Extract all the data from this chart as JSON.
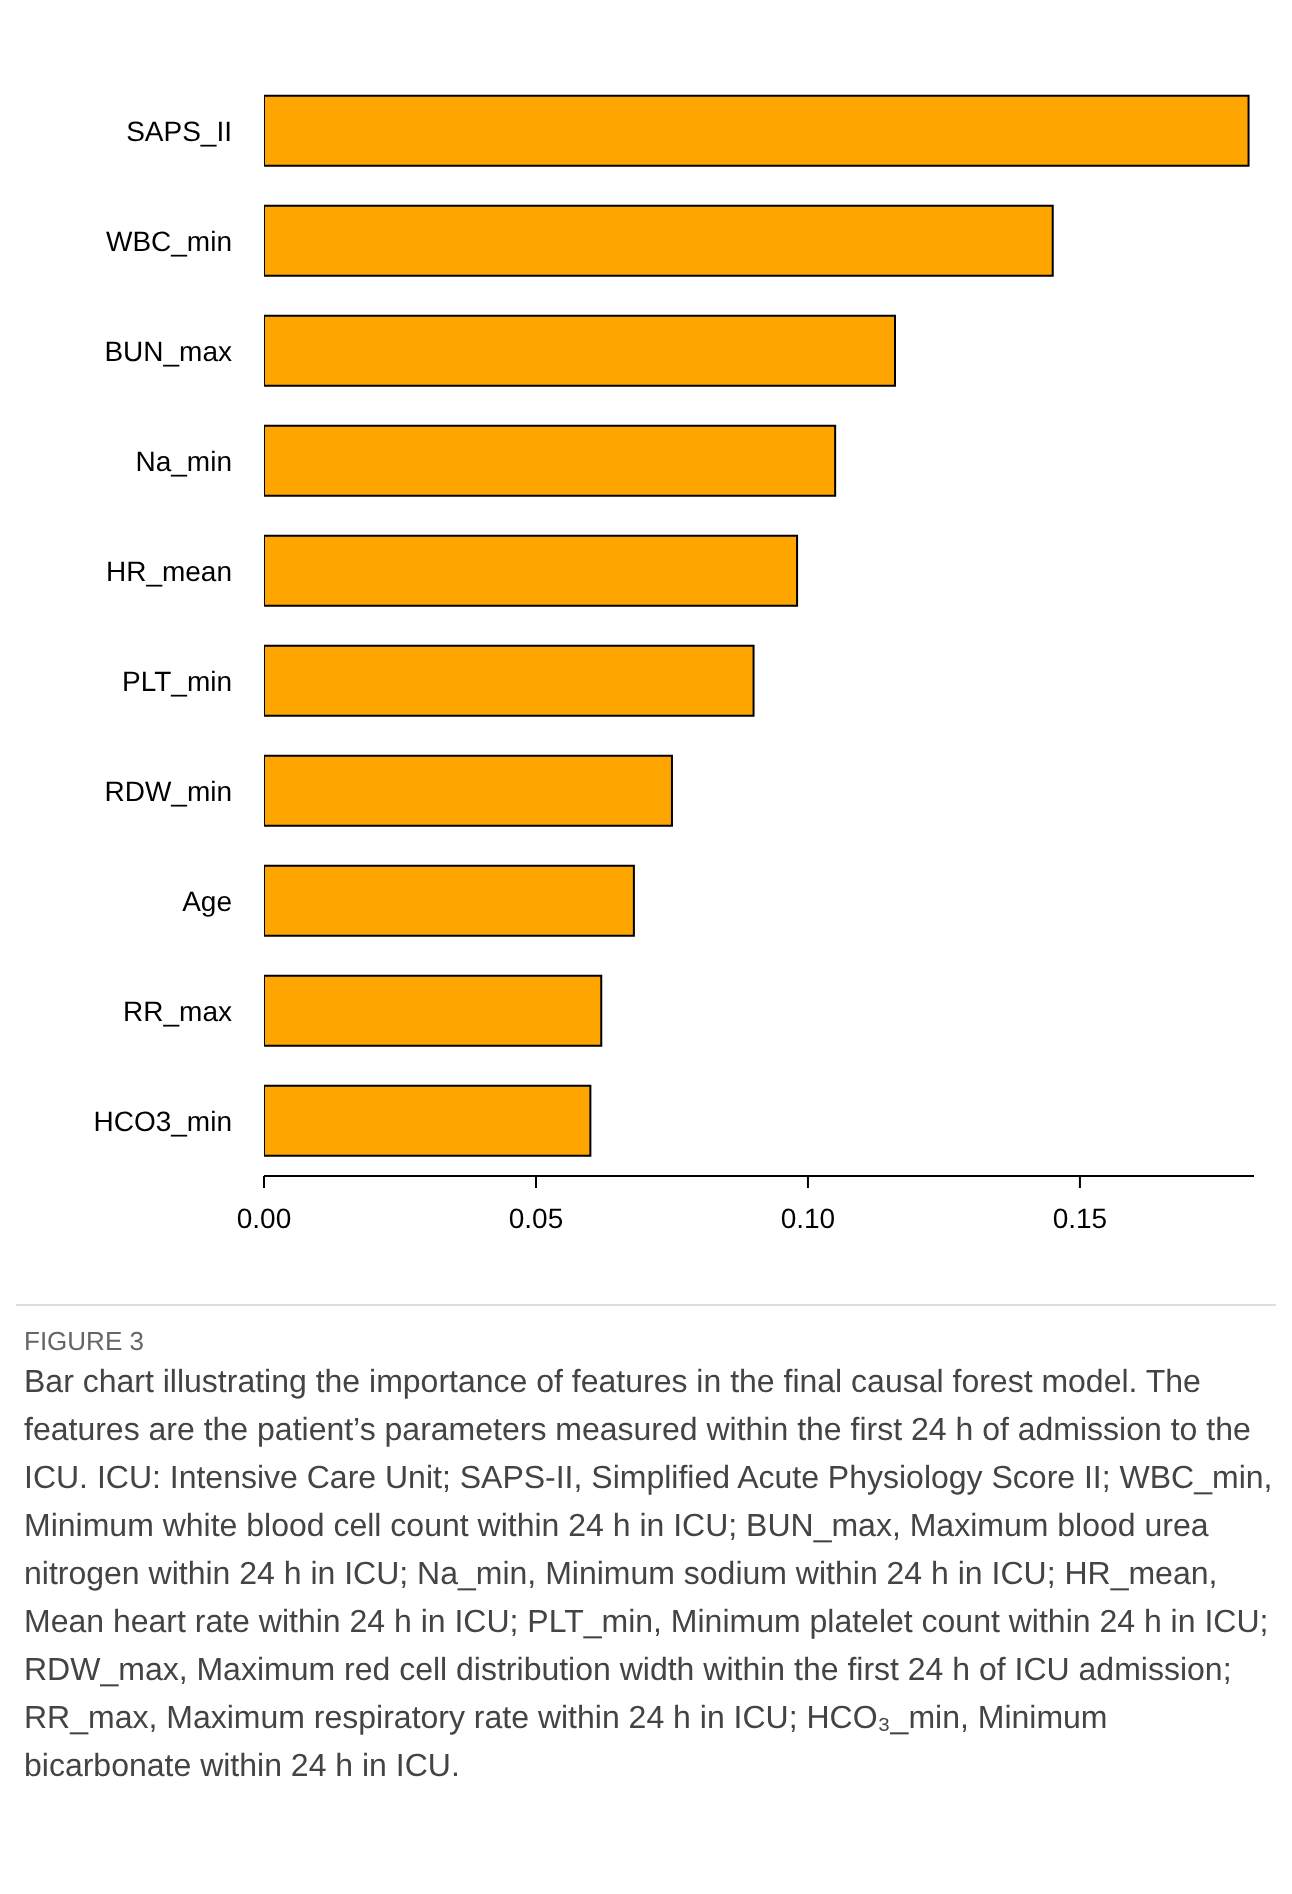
{
  "chart_data": {
    "type": "bar",
    "orientation": "horizontal",
    "title": "FIGURE 3",
    "annotations": [
      "Bar chart illustrating the importance of features in the final causal forest model. The features are the patient’s parameters measured within the first 24 h of admission to the ICU. ICU: Intensive Care Unit; SAPS-II, Simplified Acute Physiology Score II; WBC_min, Minimum white blood cell count within 24 h in ICU; BUN_max, Maximum blood urea nitrogen within 24 h in ICU; Na_min, Minimum sodium within 24 h in ICU; HR_mean, Mean heart rate within 24 h in ICU; PLT_min, Minimum platelet count within 24 h in ICU; RDW_max, Maximum red cell distribution width within the first 24 h of ICU admission; RR_max, Maximum respiratory rate within 24 h in ICU; HCO₃_min, Minimum bicarbonate within 24 h in ICU."
    ],
    "categories": [
      "SAPS_II",
      "WBC_min",
      "BUN_max",
      "Na_min",
      "HR_mean",
      "PLT_min",
      "RDW_min",
      "Age",
      "RR_max",
      "HCO3_min"
    ],
    "values": [
      0.181,
      0.145,
      0.116,
      0.105,
      0.098,
      0.09,
      0.075,
      0.068,
      0.062,
      0.06
    ],
    "color": "#ffa500",
    "xlim": [
      0,
      0.182
    ],
    "xticks": [
      {
        "value": 0,
        "label": "0.00"
      },
      {
        "value": 0.05,
        "label": "0.05"
      },
      {
        "value": 0.1,
        "label": "0.10"
      },
      {
        "value": 0.15,
        "label": "0.15"
      }
    ],
    "grid": false,
    "legend": false
  }
}
